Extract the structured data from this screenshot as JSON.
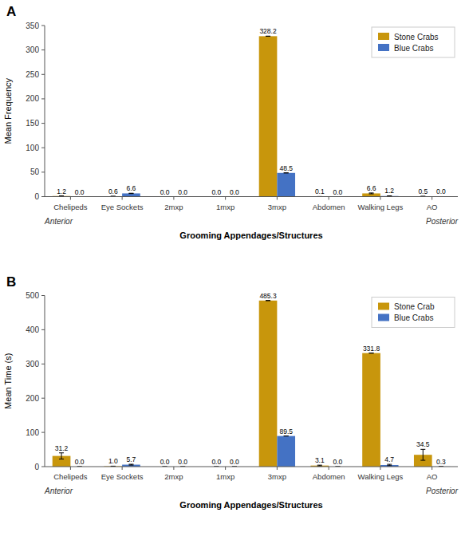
{
  "chart_data": [
    {
      "type": "bar",
      "title": "A",
      "x_label": "Grooming Appendages/Structures",
      "y_label": "Mean Frequency",
      "categories": [
        "Chelipeds",
        "Eye Sockets",
        "2mxp",
        "1mxp",
        "3mxp",
        "Abdomen",
        "Walking Legs",
        "AO"
      ],
      "series": [
        {
          "name": "Stone Crabs",
          "color": "#C8960C",
          "values": [
            1.2,
            0.6,
            0.0,
            0.0,
            328.2,
            0.1,
            6.6,
            0.5
          ],
          "errors": [
            0.25,
            0.1,
            0.0,
            0.0,
            0.0,
            0.05,
            0.9,
            0.2
          ],
          "value_labels": [
            "1.2",
            "0.6",
            "0.0",
            "0.0",
            "328.2",
            "0.1",
            "6.6",
            "0.5"
          ]
        },
        {
          "name": "Blue Crabs",
          "color": "#4472C4",
          "values": [
            0.0,
            6.6,
            0.0,
            0.0,
            48.5,
            0.0,
            1.2,
            0.0
          ],
          "errors": [
            0.0,
            0.35,
            0.0,
            0.0,
            0.0,
            0.0,
            0.45,
            0.01
          ],
          "value_labels": [
            "0.0",
            "6.6",
            "0.0",
            "0.0",
            "48.5",
            "0.0",
            "1.2",
            "0.0"
          ]
        }
      ],
      "ylim": [
        0,
        350
      ],
      "yticks": [
        0,
        50,
        100,
        150,
        200,
        250,
        300,
        350
      ],
      "legend": "upper right",
      "grid": false,
      "data_labels": true,
      "annotations": [
        "Anterior",
        "Posterior"
      ]
    },
    {
      "type": "bar",
      "title": "B",
      "x_label": "Grooming Appendages/Structures",
      "y_label": "Mean Time (s)",
      "categories": [
        "Chelipeds",
        "Eye Sockets",
        "2mxp",
        "1mxp",
        "3mxp",
        "Abdomen",
        "Walking Legs",
        "AO"
      ],
      "series": [
        {
          "name": "Stone Crab",
          "color": "#C8960C",
          "values": [
            31.2,
            1.0,
            0.0,
            0.0,
            485.3,
            3.1,
            331.8,
            34.5
          ],
          "errors": [
            9.0,
            0.4,
            0.0,
            0.0,
            0.0,
            1.2,
            0.0,
            16.0
          ],
          "value_labels": [
            "31.2",
            "1.0",
            "0.0",
            "0.0",
            "485.3",
            "3.1",
            "331.8",
            "34.5"
          ]
        },
        {
          "name": "Blue Crabs",
          "color": "#4472C4",
          "values": [
            0.0,
            5.7,
            0.0,
            0.0,
            89.5,
            0.0,
            4.7,
            0.3
          ],
          "errors": [
            0.0,
            1.2,
            0.0,
            0.0,
            0.0,
            0.0,
            2.0,
            0.1
          ],
          "value_labels": [
            "0.0",
            "5.7",
            "0.0",
            "0.0",
            "89.5",
            "0.0",
            "4.7",
            "0.3"
          ]
        }
      ],
      "ylim": [
        0,
        500
      ],
      "yticks": [
        0,
        100,
        200,
        300,
        400,
        500
      ],
      "legend": "upper right",
      "grid": false,
      "data_labels": true,
      "annotations": [
        "Anterior",
        "Posterior"
      ]
    }
  ]
}
